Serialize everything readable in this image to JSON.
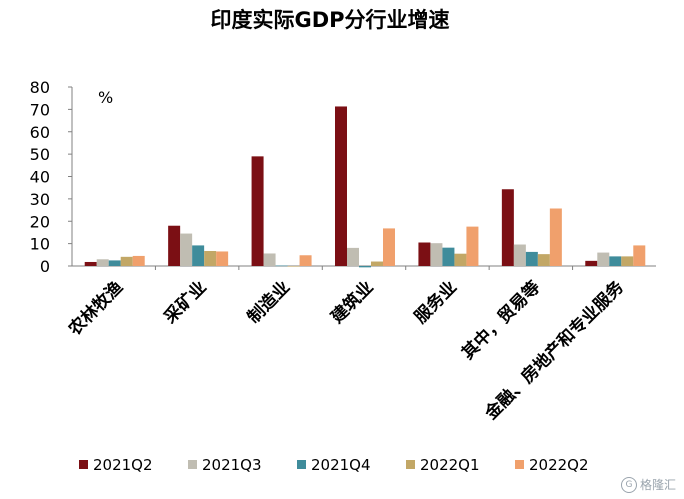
{
  "chart_data": {
    "type": "bar",
    "title": "印度实际GDP分行业增速",
    "unit_label": "%",
    "ylim": [
      0,
      80
    ],
    "yticks": [
      0,
      10,
      20,
      30,
      40,
      50,
      60,
      70,
      80
    ],
    "grid": false,
    "legend_position": "bottom",
    "categories": [
      "农林牧渔",
      "采矿业",
      "制造业",
      "建筑业",
      "服务业",
      "其中，贸易等",
      "金融、房地产和专业服务"
    ],
    "series": [
      {
        "name": "2021Q2",
        "color": "#7b0f14",
        "values": [
          1.8,
          18.0,
          49.0,
          71.3,
          10.5,
          34.3,
          2.3
        ]
      },
      {
        "name": "2021Q3",
        "color": "#c0bdb2",
        "values": [
          3.0,
          14.5,
          5.6,
          8.1,
          10.2,
          9.6,
          6.0
        ]
      },
      {
        "name": "2021Q4",
        "color": "#3f8c9b",
        "values": [
          2.5,
          9.2,
          0.2,
          -0.6,
          8.2,
          6.3,
          4.3
        ]
      },
      {
        "name": "2022Q1",
        "color": "#c2a766",
        "values": [
          4.1,
          6.7,
          -0.2,
          2.0,
          5.5,
          5.3,
          4.3
        ]
      },
      {
        "name": "2022Q2",
        "color": "#f0a06c",
        "values": [
          4.5,
          6.5,
          4.8,
          16.8,
          17.6,
          25.7,
          9.2
        ]
      }
    ]
  },
  "watermark": {
    "glyph": "G",
    "text": "格隆汇"
  }
}
